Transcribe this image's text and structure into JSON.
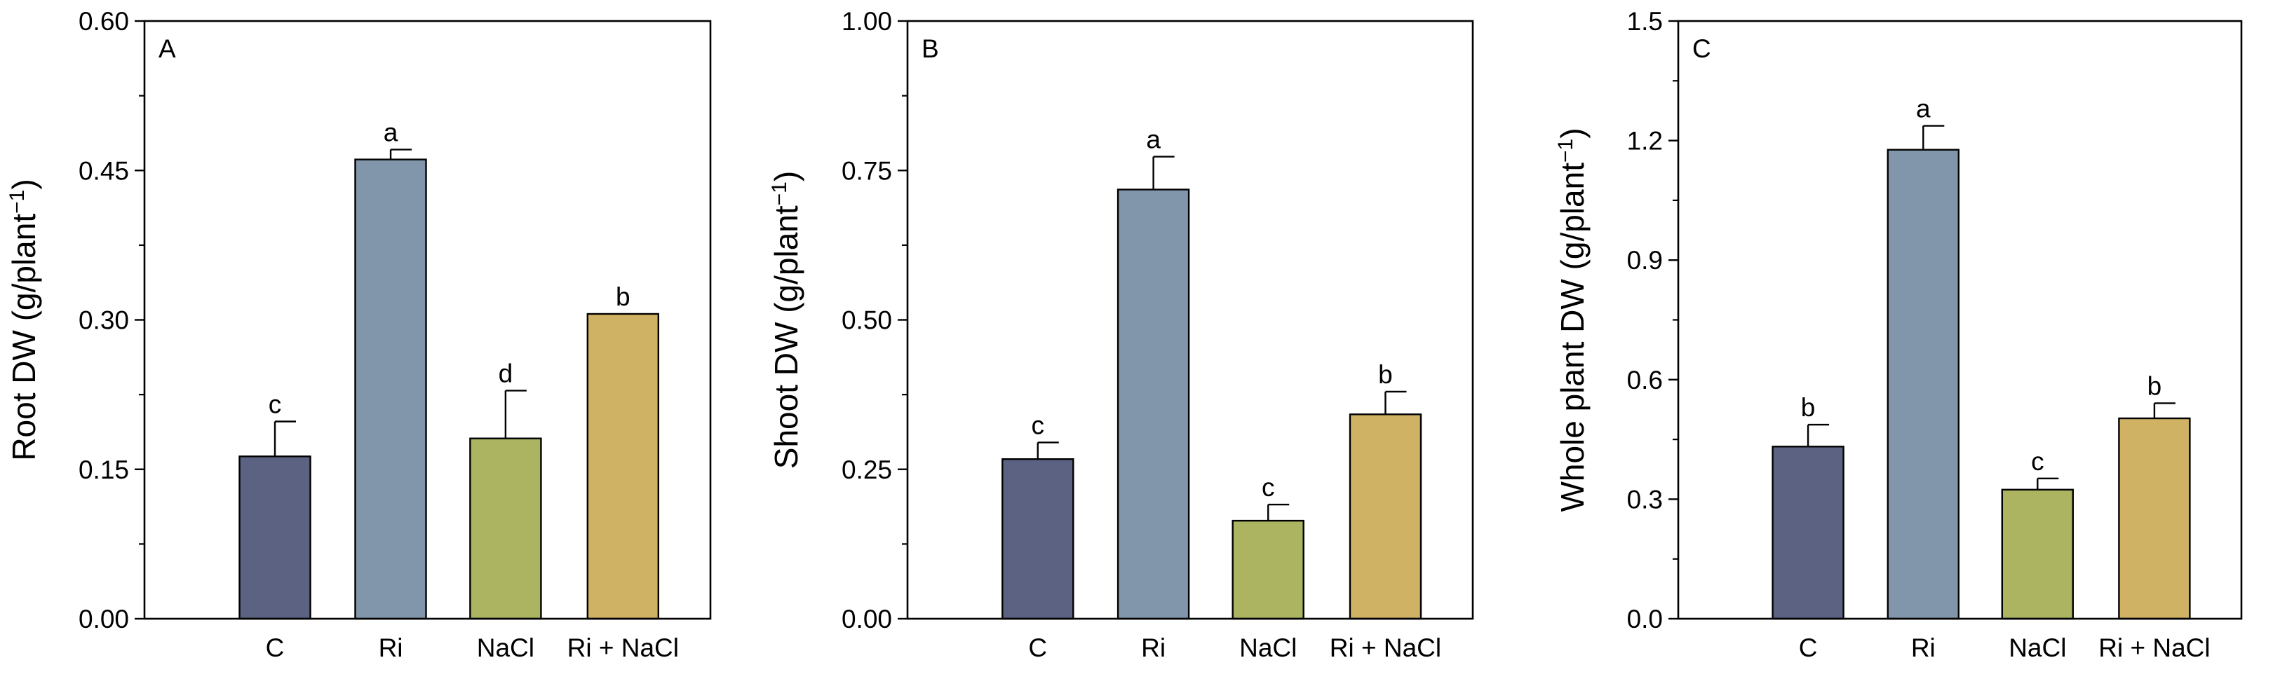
{
  "chart_data": [
    {
      "type": "bar",
      "panel_label": "A",
      "categories": [
        "C",
        "Ri",
        "NaCl",
        "Ri + NaCl"
      ],
      "values": [
        0.163,
        0.461,
        0.181,
        0.306
      ],
      "errors": [
        0.035,
        0.01,
        0.048,
        0.0
      ],
      "significance": [
        "c",
        "a",
        "d",
        "b"
      ],
      "bar_colors": [
        "#5c6282",
        "#8196ab",
        "#acb461",
        "#cfb264"
      ],
      "ylabel": {
        "main": "Root DW (g/plant",
        "sup": "−1",
        "close": ")"
      },
      "xlabel": "",
      "ylim": [
        0,
        0.6
      ],
      "yticks": [
        0.0,
        0.15,
        0.3,
        0.45,
        0.6
      ],
      "ytick_labels": [
        "0.00",
        "0.15",
        "0.30",
        "0.45",
        "0.60"
      ],
      "grid": false
    },
    {
      "type": "bar",
      "panel_label": "B",
      "categories": [
        "C",
        "Ri",
        "NaCl",
        "Ri + NaCl"
      ],
      "values": [
        0.267,
        0.718,
        0.164,
        0.342
      ],
      "errors": [
        0.028,
        0.055,
        0.027,
        0.038
      ],
      "significance": [
        "c",
        "a",
        "c",
        "b"
      ],
      "bar_colors": [
        "#5c6282",
        "#8196ab",
        "#acb461",
        "#cfb264"
      ],
      "ylabel": {
        "main": "Shoot DW (g/plant",
        "sup": "−1",
        "close": ")"
      },
      "xlabel": "",
      "ylim": [
        0,
        1.0
      ],
      "yticks": [
        0.0,
        0.25,
        0.5,
        0.75,
        1.0
      ],
      "ytick_labels": [
        "0.00",
        "0.25",
        "0.50",
        "0.75",
        "1.00"
      ],
      "grid": false
    },
    {
      "type": "bar",
      "panel_label": "C",
      "categories": [
        "C",
        "Ri",
        "NaCl",
        "Ri + NaCl"
      ],
      "values": [
        0.432,
        1.177,
        0.324,
        0.503
      ],
      "errors": [
        0.055,
        0.06,
        0.028,
        0.038
      ],
      "significance": [
        "b",
        "a",
        "c",
        "b"
      ],
      "bar_colors": [
        "#5c6282",
        "#8196ab",
        "#acb461",
        "#cfb264"
      ],
      "ylabel": {
        "main": "Whole plant DW (g/plant",
        "sup": "−1",
        "close": ")"
      },
      "xlabel": "",
      "ylim": [
        0,
        1.5
      ],
      "yticks": [
        0.0,
        0.3,
        0.6,
        0.9,
        1.2,
        1.5
      ],
      "ytick_labels": [
        "0.0",
        "0.3",
        "0.6",
        "0.9",
        "1.2",
        "1.5"
      ],
      "grid": false
    }
  ]
}
